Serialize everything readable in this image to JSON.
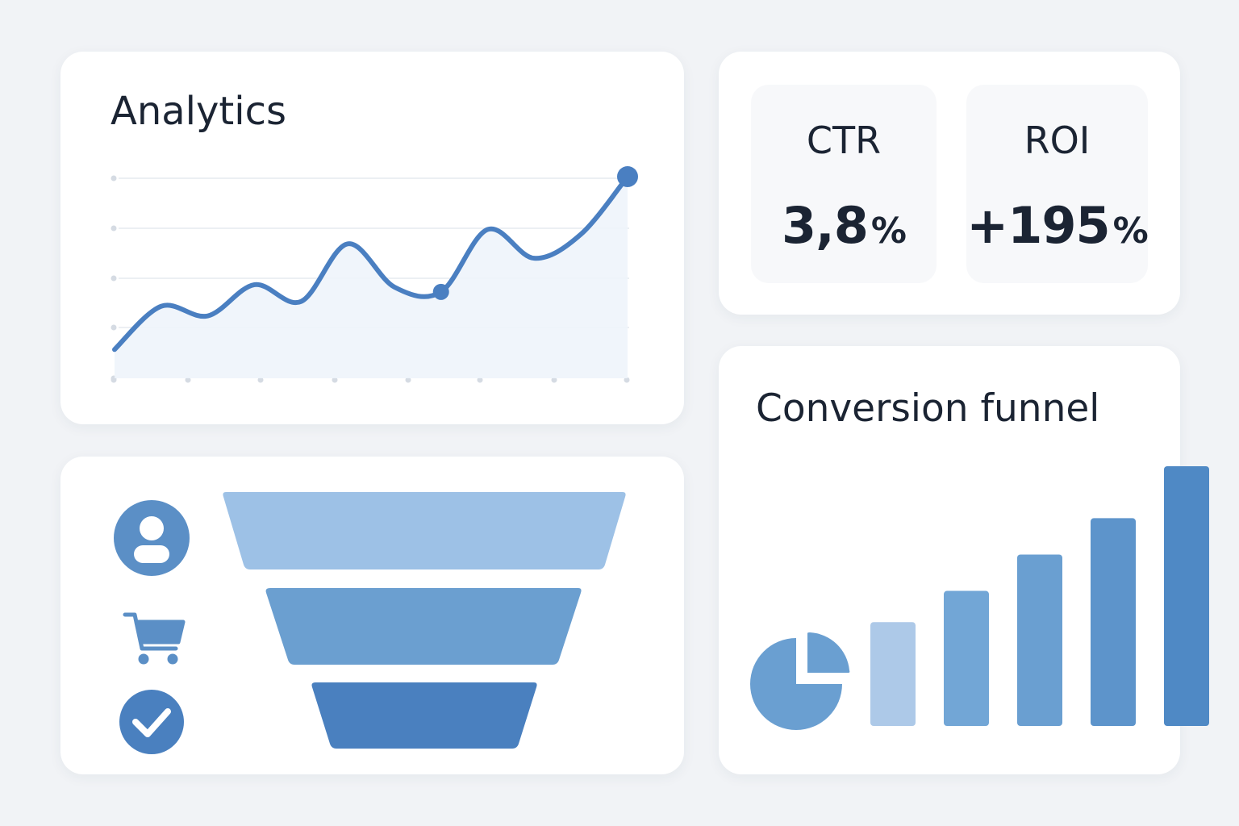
{
  "analytics": {
    "title": "Analytics",
    "chart_data": {
      "type": "line",
      "x": [
        0,
        1,
        2,
        3,
        4,
        5,
        6,
        7,
        8,
        9,
        10,
        11
      ],
      "values": [
        1.2,
        3.0,
        2.6,
        3.9,
        3.2,
        5.6,
        3.8,
        3.6,
        6.2,
        5.0,
        6.0,
        8.4
      ],
      "highlighted_points": [
        7,
        11
      ],
      "ylim": [
        0,
        8.5
      ],
      "grid": true,
      "area_fill": true,
      "color": "#4a7fc1"
    }
  },
  "kpis": [
    {
      "label": "CTR",
      "value": "3,8",
      "unit": "%"
    },
    {
      "label": "ROI",
      "value": "+195",
      "unit": "%"
    }
  ],
  "funnel": {
    "stages": [
      {
        "icon": "user-icon",
        "color": "#9dc1e6"
      },
      {
        "icon": "cart-icon",
        "color": "#6b9fd0"
      },
      {
        "icon": "check-icon",
        "color": "#4a80bf"
      }
    ],
    "icon_color": "#5b8fc6"
  },
  "conversion": {
    "title": "Conversion funnel",
    "icon": "pie-chart-icon",
    "chart_data": {
      "type": "bar",
      "categories": [
        "1",
        "2",
        "3",
        "4",
        "5"
      ],
      "values": [
        40,
        52,
        66,
        80,
        100
      ],
      "ylim": [
        0,
        100
      ],
      "colors": [
        "#adc9e8",
        "#72a6d6",
        "#6a9fd1",
        "#5d94cb",
        "#4f89c5"
      ]
    }
  },
  "colors": {
    "background": "#f1f3f6",
    "card": "#ffffff",
    "text": "#1b2433",
    "accent": "#4a7fc1"
  }
}
